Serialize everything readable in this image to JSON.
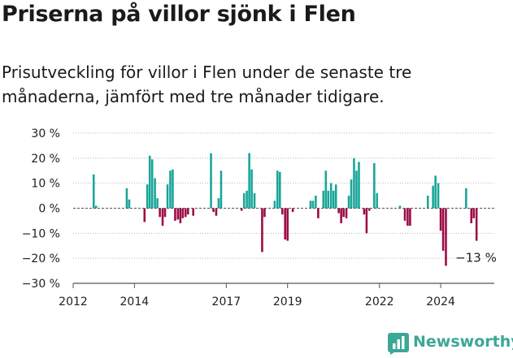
{
  "header": {
    "title": "Priserna på villor sjönk i Flen",
    "subtitle": "Prisutveckling för villor i Flen under de senaste tre månaderna, jämfört med tre månader tidigare."
  },
  "brand": {
    "name": "Newsworthy",
    "icon": "bar-chart-logo-icon",
    "color": "#3aa896"
  },
  "chart_data": {
    "type": "bar",
    "title": "Priserna på villor sjönk i Flen",
    "xlabel": "",
    "ylabel": "",
    "ylim": [
      -30,
      30
    ],
    "xlim": [
      2012.0,
      2025.75
    ],
    "y_ticks": [
      30,
      20,
      10,
      0,
      -10,
      -20,
      -30
    ],
    "y_tick_labels": [
      "30 %",
      "20 %",
      "10 %",
      "0 %",
      "−10 %",
      "−20 %",
      "−30 %"
    ],
    "x_ticks": [
      2012,
      2014,
      2017,
      2019,
      2022,
      2024
    ],
    "x_tick_labels": [
      "2012",
      "2014",
      "2017",
      "2019",
      "2022",
      "2024"
    ],
    "grid": "horizontal dotted",
    "colors": {
      "positive": "#19a699",
      "negative": "#9d0b45"
    },
    "end_label": "−13 %",
    "bar_width_months": 1,
    "series": [
      {
        "values": [
          {
            "x": 2012.67,
            "y": 13.5
          },
          {
            "x": 2012.75,
            "y": 1
          },
          {
            "x": 2013.75,
            "y": 8
          },
          {
            "x": 2013.83,
            "y": 3.5
          },
          {
            "x": 2014.33,
            "y": -5.5
          },
          {
            "x": 2014.42,
            "y": 9.5
          },
          {
            "x": 2014.5,
            "y": 21
          },
          {
            "x": 2014.58,
            "y": 19.5
          },
          {
            "x": 2014.67,
            "y": 12
          },
          {
            "x": 2014.75,
            "y": 4
          },
          {
            "x": 2014.83,
            "y": -3.5
          },
          {
            "x": 2014.92,
            "y": -7
          },
          {
            "x": 2015.0,
            "y": -3.5
          },
          {
            "x": 2015.08,
            "y": 9.5
          },
          {
            "x": 2015.17,
            "y": 15
          },
          {
            "x": 2015.25,
            "y": 15.5
          },
          {
            "x": 2015.33,
            "y": -5
          },
          {
            "x": 2015.42,
            "y": -4.5
          },
          {
            "x": 2015.5,
            "y": -6
          },
          {
            "x": 2015.58,
            "y": -4
          },
          {
            "x": 2015.67,
            "y": -3.5
          },
          {
            "x": 2015.75,
            "y": -2.5
          },
          {
            "x": 2015.92,
            "y": -3
          },
          {
            "x": 2016.5,
            "y": 22
          },
          {
            "x": 2016.58,
            "y": -1.5
          },
          {
            "x": 2016.67,
            "y": -3
          },
          {
            "x": 2016.75,
            "y": 4
          },
          {
            "x": 2016.83,
            "y": 15
          },
          {
            "x": 2017.5,
            "y": -1
          },
          {
            "x": 2017.58,
            "y": 6
          },
          {
            "x": 2017.67,
            "y": 7
          },
          {
            "x": 2017.75,
            "y": 22
          },
          {
            "x": 2017.83,
            "y": 15.5
          },
          {
            "x": 2017.92,
            "y": 6
          },
          {
            "x": 2018.17,
            "y": -17.5
          },
          {
            "x": 2018.25,
            "y": -3.5
          },
          {
            "x": 2018.58,
            "y": 3
          },
          {
            "x": 2018.67,
            "y": 15
          },
          {
            "x": 2018.75,
            "y": 14.5
          },
          {
            "x": 2018.83,
            "y": -2.5
          },
          {
            "x": 2018.92,
            "y": -12.5
          },
          {
            "x": 2019.0,
            "y": -13
          },
          {
            "x": 2019.17,
            "y": -1.5
          },
          {
            "x": 2019.75,
            "y": 3
          },
          {
            "x": 2019.83,
            "y": 3
          },
          {
            "x": 2019.92,
            "y": 5
          },
          {
            "x": 2020.0,
            "y": -4
          },
          {
            "x": 2020.17,
            "y": 7
          },
          {
            "x": 2020.25,
            "y": 15
          },
          {
            "x": 2020.33,
            "y": 7
          },
          {
            "x": 2020.42,
            "y": 10
          },
          {
            "x": 2020.5,
            "y": 7
          },
          {
            "x": 2020.58,
            "y": 9.5
          },
          {
            "x": 2020.67,
            "y": -2
          },
          {
            "x": 2020.75,
            "y": -6
          },
          {
            "x": 2020.83,
            "y": -3.5
          },
          {
            "x": 2020.92,
            "y": -4
          },
          {
            "x": 2021.0,
            "y": 5
          },
          {
            "x": 2021.08,
            "y": 11.5
          },
          {
            "x": 2021.17,
            "y": 20
          },
          {
            "x": 2021.25,
            "y": 15
          },
          {
            "x": 2021.33,
            "y": 18.5
          },
          {
            "x": 2021.5,
            "y": -2.5
          },
          {
            "x": 2021.58,
            "y": -10
          },
          {
            "x": 2021.67,
            "y": -1
          },
          {
            "x": 2021.83,
            "y": 18
          },
          {
            "x": 2021.92,
            "y": 6
          },
          {
            "x": 2022.67,
            "y": 1
          },
          {
            "x": 2022.83,
            "y": -5
          },
          {
            "x": 2022.92,
            "y": -7
          },
          {
            "x": 2023.0,
            "y": -7
          },
          {
            "x": 2023.58,
            "y": 5
          },
          {
            "x": 2023.75,
            "y": 9
          },
          {
            "x": 2023.83,
            "y": 13
          },
          {
            "x": 2023.92,
            "y": 10
          },
          {
            "x": 2024.0,
            "y": -9
          },
          {
            "x": 2024.08,
            "y": -17
          },
          {
            "x": 2024.17,
            "y": -23
          },
          {
            "x": 2024.83,
            "y": 8
          },
          {
            "x": 2025.0,
            "y": -6
          },
          {
            "x": 2025.08,
            "y": -4
          },
          {
            "x": 2025.17,
            "y": -13
          }
        ]
      }
    ]
  }
}
